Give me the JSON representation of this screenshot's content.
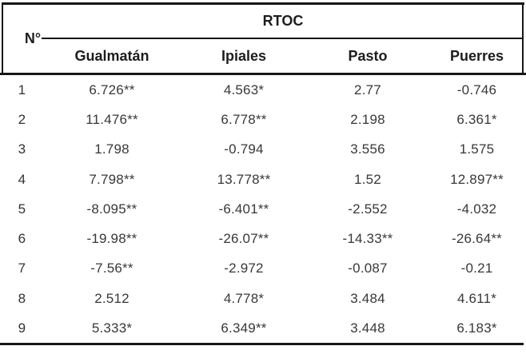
{
  "table": {
    "row_header": "N°",
    "group_header": "RTOC",
    "columns": [
      "Gualmatán",
      "Ipiales",
      "Pasto",
      "Puerres"
    ],
    "rows": [
      {
        "n": "1",
        "values": [
          "6.726**",
          "4.563*",
          "2.77",
          "-0.746"
        ]
      },
      {
        "n": "2",
        "values": [
          "11.476**",
          "6.778**",
          "2.198",
          "6.361*"
        ]
      },
      {
        "n": "3",
        "values": [
          "1.798",
          "-0.794",
          "3.556",
          "1.575"
        ]
      },
      {
        "n": "4",
        "values": [
          "7.798**",
          "13.778**",
          "1.52",
          "12.897**"
        ]
      },
      {
        "n": "5",
        "values": [
          "-8.095**",
          "-6.401**",
          "-2.552",
          "-4.032"
        ]
      },
      {
        "n": "6",
        "values": [
          "-19.98**",
          "-26.07**",
          "-14.33**",
          "-26.64**"
        ]
      },
      {
        "n": "7",
        "values": [
          "-7.56**",
          "-2.972",
          "-0.087",
          "-0.21"
        ]
      },
      {
        "n": "8",
        "values": [
          "2.512",
          "4.778*",
          "3.484",
          "4.611*"
        ]
      },
      {
        "n": "9",
        "values": [
          "5.333*",
          "6.349**",
          "3.448",
          "6.183*"
        ]
      }
    ]
  },
  "colors": {
    "rule": "#161616",
    "header_text": "#1d1d1d",
    "data_text": "#383838",
    "background": "#ffffff"
  }
}
